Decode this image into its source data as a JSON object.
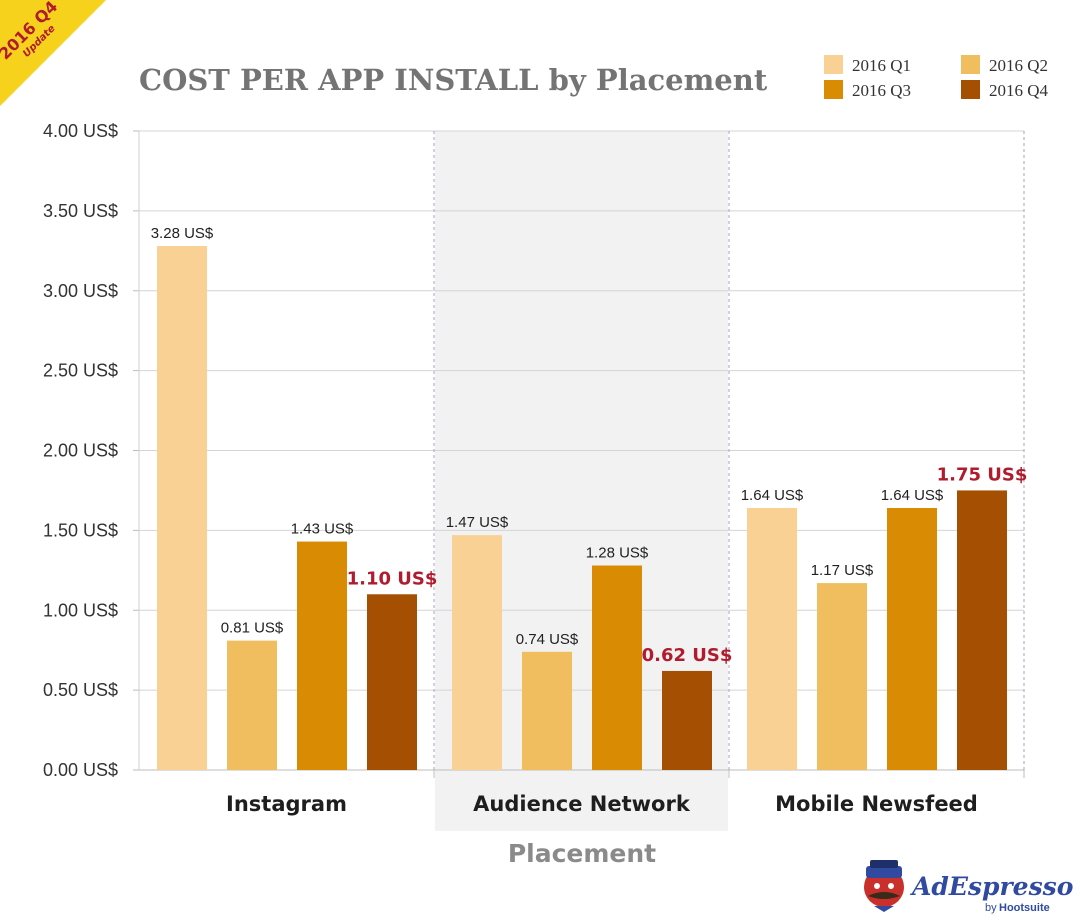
{
  "badge": {
    "title": "2016 Q4",
    "subtitle": "Update"
  },
  "brand": {
    "name": "AdEspresso",
    "by": "by",
    "company": "Hootsuite"
  },
  "colors": {
    "q1": "#f9d194",
    "q2": "#f0be5e",
    "q3": "#d98b04",
    "q4": "#a54f02",
    "highlight": "#b01c2e",
    "grid": "#d4d4d4",
    "group_shade": "#f2f2f2"
  },
  "chart_data": {
    "type": "bar",
    "title": "COST PER APP INSTALL by Placement",
    "xlabel": "Placement",
    "ylabel": "",
    "ylim": [
      0,
      4
    ],
    "yticks": [
      {
        "value": 0,
        "label": "0.00 US$"
      },
      {
        "value": 0.5,
        "label": "0.50 US$"
      },
      {
        "value": 1.0,
        "label": "1.00 US$"
      },
      {
        "value": 1.5,
        "label": "1.50 US$"
      },
      {
        "value": 2.0,
        "label": "2.00 US$"
      },
      {
        "value": 2.5,
        "label": "2.50 US$"
      },
      {
        "value": 3.0,
        "label": "3.00 US$"
      },
      {
        "value": 3.5,
        "label": "3.50 US$"
      },
      {
        "value": 4.0,
        "label": "4.00 US$"
      }
    ],
    "categories": [
      "Instagram",
      "Audience Network",
      "Mobile Newsfeed"
    ],
    "shaded_category": "Audience Network",
    "legend_position": "top-right",
    "series": [
      {
        "name": "2016 Q1",
        "color": "#f9d194",
        "values": [
          3.28,
          1.47,
          1.64
        ],
        "labels": [
          "3.28 US$",
          "1.47 US$",
          "1.64 US$"
        ],
        "highlight": false
      },
      {
        "name": "2016 Q2",
        "color": "#f0be5e",
        "values": [
          0.81,
          0.74,
          1.17
        ],
        "labels": [
          "0.81 US$",
          "0.74 US$",
          "1.17 US$"
        ],
        "highlight": false
      },
      {
        "name": "2016 Q3",
        "color": "#d98b04",
        "values": [
          1.43,
          1.28,
          1.64
        ],
        "labels": [
          "1.43 US$",
          "1.28 US$",
          "1.64 US$"
        ],
        "highlight": false
      },
      {
        "name": "2016 Q4",
        "color": "#a54f02",
        "values": [
          1.1,
          0.62,
          1.75
        ],
        "labels": [
          "1.10 US$",
          "0.62 US$",
          "1.75 US$"
        ],
        "highlight": true
      }
    ]
  }
}
